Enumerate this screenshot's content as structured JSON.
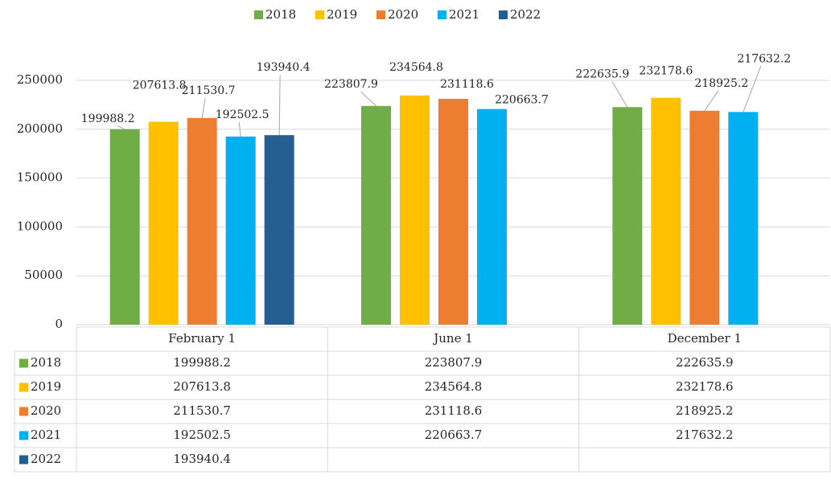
{
  "chart_data": {
    "type": "bar",
    "categories": [
      "February 1",
      "June 1",
      "December 1"
    ],
    "series": [
      {
        "name": "2018",
        "color": "#70ad47",
        "values": [
          199988.2,
          223807.9,
          222635.9
        ]
      },
      {
        "name": "2019",
        "color": "#ffc000",
        "values": [
          207613.8,
          234564.8,
          232178.6
        ]
      },
      {
        "name": "2020",
        "color": "#ed7d31",
        "values": [
          211530.7,
          231118.6,
          218925.2
        ]
      },
      {
        "name": "2021",
        "color": "#00b0f0",
        "values": [
          192502.5,
          220663.7,
          217632.2
        ]
      },
      {
        "name": "2022",
        "color": "#255e91",
        "values": [
          193940.4,
          null,
          null
        ]
      }
    ],
    "ylim": [
      0,
      250000
    ],
    "yticks": [
      0,
      50000,
      100000,
      150000,
      200000,
      250000
    ],
    "grid": true,
    "legend": "top",
    "data_table": true
  }
}
